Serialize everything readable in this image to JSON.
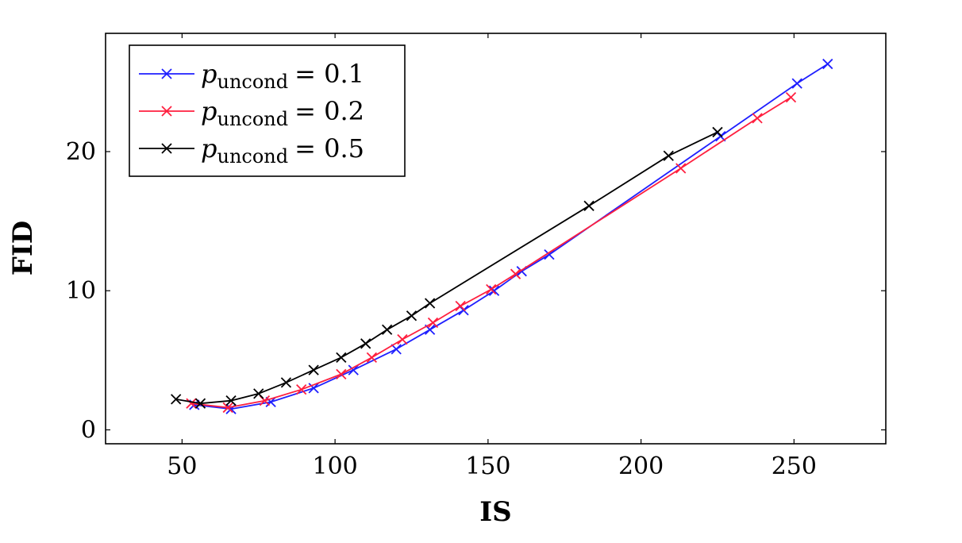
{
  "chart_data": {
    "type": "line",
    "xlabel": "IS",
    "ylabel": "FID",
    "xlim": [
      25,
      280
    ],
    "ylim": [
      -1,
      28.5
    ],
    "xticks": [
      50,
      100,
      150,
      200,
      250
    ],
    "yticks": [
      0,
      10,
      20
    ],
    "grid": false,
    "legend_position": "top-left",
    "legend_title": "",
    "series": [
      {
        "name_parts": [
          "p",
          "uncond",
          "= 0.1"
        ],
        "color": "#1f1fff",
        "marker": "x",
        "x": [
          54,
          66,
          79,
          93,
          106,
          120,
          131,
          142,
          152,
          161,
          170,
          226,
          251,
          261
        ],
        "y": [
          1.8,
          1.5,
          2.0,
          3.0,
          4.3,
          5.8,
          7.2,
          8.6,
          10.0,
          11.4,
          12.6,
          21.1,
          24.9,
          26.3
        ]
      },
      {
        "name_parts": [
          "p",
          "uncond",
          "= 0.2"
        ],
        "color": "#ff1f3f",
        "marker": "x",
        "x": [
          53,
          65,
          77,
          89,
          102,
          112,
          122,
          132,
          141,
          151,
          159,
          213,
          238,
          249
        ],
        "y": [
          1.9,
          1.6,
          2.1,
          2.9,
          4.0,
          5.2,
          6.5,
          7.7,
          8.9,
          10.1,
          11.2,
          18.8,
          22.4,
          23.9
        ]
      },
      {
        "name_parts": [
          "p",
          "uncond",
          "= 0.5"
        ],
        "color": "#000000",
        "marker": "x",
        "x": [
          48,
          56,
          66,
          75,
          84,
          93,
          102,
          110,
          117,
          125,
          131,
          183,
          209,
          225
        ],
        "y": [
          2.2,
          1.9,
          2.1,
          2.6,
          3.4,
          4.3,
          5.2,
          6.2,
          7.2,
          8.2,
          9.1,
          16.1,
          19.7,
          21.4
        ]
      }
    ]
  }
}
